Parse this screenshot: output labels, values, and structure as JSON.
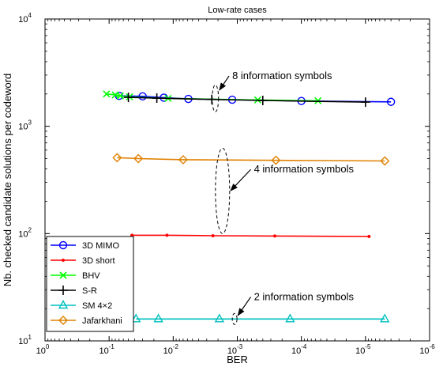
{
  "chart_data": {
    "type": "line",
    "title": "Low-rate cases",
    "xlabel": "BER",
    "ylabel": "Nb. checked candidate solutions per codeword",
    "x_scale": "log",
    "y_scale": "log",
    "x_reversed": true,
    "xlim": [
      1,
      1e-06
    ],
    "ylim": [
      10,
      10000
    ],
    "x_ticks": [
      {
        "value": 1,
        "base": "10",
        "exp": "0"
      },
      {
        "value": 0.1,
        "base": "10",
        "exp": "-1"
      },
      {
        "value": 0.01,
        "base": "10",
        "exp": "-2"
      },
      {
        "value": 0.001,
        "base": "10",
        "exp": "-3"
      },
      {
        "value": 0.0001,
        "base": "10",
        "exp": "-4"
      },
      {
        "value": 1e-05,
        "base": "10",
        "exp": "-5"
      },
      {
        "value": 1e-06,
        "base": "10",
        "exp": "-6"
      }
    ],
    "y_ticks": [
      {
        "value": 10,
        "base": "10",
        "exp": "1"
      },
      {
        "value": 100,
        "base": "10",
        "exp": "2"
      },
      {
        "value": 1000,
        "base": "10",
        "exp": "3"
      },
      {
        "value": 10000,
        "base": "10",
        "exp": "4"
      }
    ],
    "grid": false,
    "legend_position": "bottom-left",
    "series": [
      {
        "name": "3D MIMO",
        "color": "#0000ff",
        "marker": "circle",
        "x": [
          0.07,
          0.03,
          0.014,
          0.0058,
          0.0012,
          0.0001,
          4e-06
        ],
        "y": [
          1920,
          1900,
          1850,
          1800,
          1770,
          1720,
          1690
        ]
      },
      {
        "name": "3D short",
        "color": "#ff0000",
        "marker": "dot",
        "x": [
          0.044,
          0.0125,
          0.0024,
          0.00026,
          8.8e-06
        ],
        "y": [
          96.5,
          96.5,
          95.5,
          95,
          94
        ]
      },
      {
        "name": "BHV",
        "color": "#00ff00",
        "marker": "x",
        "x": [
          0.11,
          0.08,
          0.067,
          0.048,
          0.012,
          0.00048,
          5.5e-05
        ],
        "y": [
          2000,
          1960,
          1920,
          1880,
          1820,
          1760,
          1730
        ]
      },
      {
        "name": "S-R",
        "color": "#000000",
        "marker": "plus",
        "x": [
          0.05,
          0.018,
          0.0025,
          0.0004,
          1e-05
        ],
        "y": [
          1860,
          1830,
          1780,
          1740,
          1680
        ]
      },
      {
        "name": "SM 4×2",
        "color": "#00bfbf",
        "marker": "triangle",
        "x": [
          0.038,
          0.017,
          0.0019,
          0.00015,
          5e-06
        ],
        "y": [
          16,
          16,
          16,
          16,
          16
        ]
      },
      {
        "name": "Jafarkhani",
        "color": "#e08000",
        "marker": "diamond",
        "x": [
          0.075,
          0.035,
          0.007,
          0.00025,
          5e-06
        ],
        "y": [
          510,
          500,
          488,
          482,
          475
        ]
      }
    ],
    "annotations": [
      {
        "text": "8 information symbols",
        "target_x": 0.0022,
        "target_y": 1820,
        "text_x": 0.0012,
        "text_y": 2750
      },
      {
        "text": "4 information symbols",
        "target_x": 0.0017,
        "target_y": 250,
        "text_x": 0.00055,
        "text_y": 370
      },
      {
        "text": "2 information symbols",
        "target_x": 0.0011,
        "target_y": 16,
        "text_x": 0.00055,
        "text_y": 24
      }
    ]
  }
}
